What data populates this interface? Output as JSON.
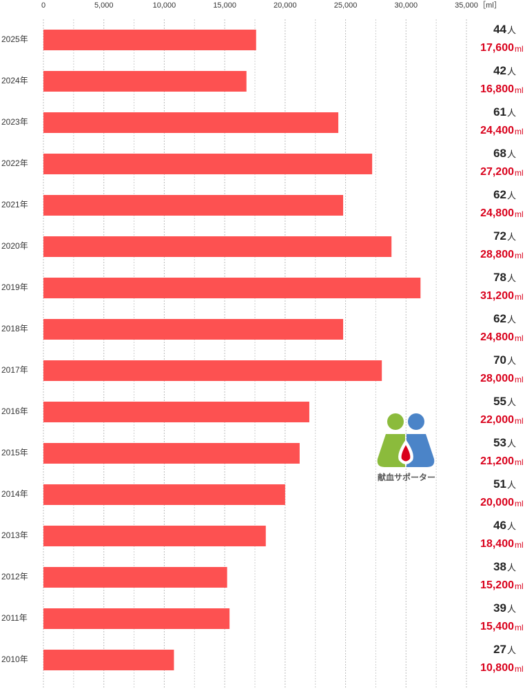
{
  "chart_data": {
    "type": "barh",
    "categories": [
      "2025年",
      "2024年",
      "2023年",
      "2022年",
      "2021年",
      "2020年",
      "2019年",
      "2018年",
      "2017年",
      "2016年",
      "2015年",
      "2014年",
      "2013年",
      "2012年",
      "2011年",
      "2010年"
    ],
    "values": [
      17600,
      16800,
      24400,
      27200,
      24800,
      28800,
      31200,
      24800,
      28000,
      22000,
      21200,
      20000,
      18400,
      15200,
      15400,
      10800
    ],
    "value_labels": [
      "17,600",
      "16,800",
      "24,400",
      "27,200",
      "24,800",
      "28,800",
      "31,200",
      "24,800",
      "28,000",
      "22,000",
      "21,200",
      "20,000",
      "18,400",
      "15,200",
      "15,400",
      "10,800"
    ],
    "value_unit": "ml",
    "persons": [
      44,
      42,
      61,
      68,
      62,
      72,
      78,
      62,
      70,
      55,
      53,
      51,
      46,
      38,
      39,
      27
    ],
    "person_unit": "人",
    "color": "#fd5151",
    "xlabel": "［ml］",
    "xlim": [
      0,
      35000
    ],
    "xticks": [
      0,
      {
        "value": 5000,
        "label": "5,000"
      },
      {
        "value": 10000,
        "label": "10,000"
      },
      {
        "value": 15000,
        "label": "15,000"
      },
      {
        "value": 20000,
        "label": "20,000"
      },
      {
        "value": 25000,
        "label": "25,000"
      },
      {
        "value": 30000,
        "label": "30,000"
      },
      {
        "value": 35000,
        "label": "35,000"
      }
    ],
    "grid": true,
    "logo_text": "献血サポーター"
  }
}
